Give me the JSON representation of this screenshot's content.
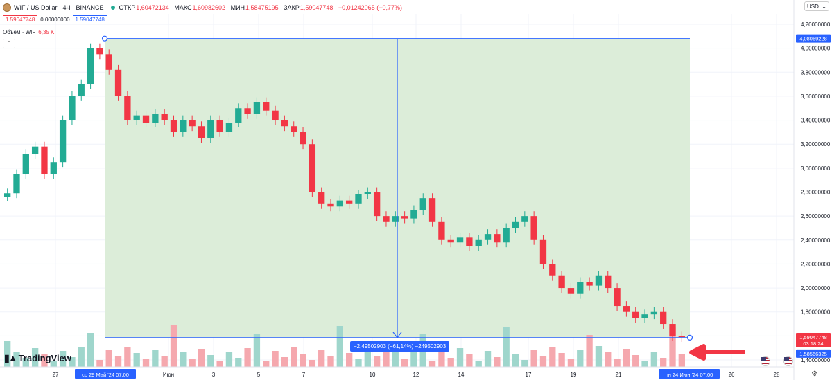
{
  "header": {
    "symbol": "WIF / US Dollar · 4Ч · BINANCE",
    "open_label": "ОТКР",
    "open": "1,60472134",
    "high_label": "МАКС",
    "high": "1,60982602",
    "low_label": "МИН",
    "low": "1,58475195",
    "close_label": "ЗАКР",
    "close": "1,59047748",
    "change": "−0,01242065 (−0,77%)",
    "bid": "1.59047748",
    "spread": "0.00000000",
    "ask": "1.59047748"
  },
  "volume_label": "Объём · WIF",
  "volume_value": "6,35 K",
  "currency": "USD",
  "brand": "TradingView",
  "measure_label": "−2,49502903 (−61,14%) −249502903",
  "axis_badges": {
    "top_price": "4,08069228",
    "last_price": "1,59047748",
    "countdown": "03:18:24",
    "bottom_price": "1,58566325",
    "start_date": "ср 29 Май '24",
    "start_time": "07:00",
    "end_date": "пн 24 Июн '24",
    "end_time": "07:00"
  },
  "colors": {
    "up": "#22ab94",
    "down": "#f23645",
    "range_fill": "#dcedd9",
    "measure": "#2962ff"
  },
  "chart_data": {
    "type": "candlestick",
    "title": "WIF / US Dollar · 4Ч · BINANCE",
    "y_ticks": [
      "4,20000000",
      "4,00000000",
      "3,80000000",
      "3,60000000",
      "3,40000000",
      "3,20000000",
      "3,00000000",
      "2,80000000",
      "2,60000000",
      "2,40000000",
      "2,20000000",
      "2,00000000",
      "1,80000000",
      "1,60000000",
      "1,40000000"
    ],
    "ylim": [
      1.36,
      4.23
    ],
    "x_ticks": [
      "27",
      "Июн",
      "3",
      "5",
      "7",
      "10",
      "12",
      "14",
      "17",
      "19",
      "21",
      "26",
      "28"
    ],
    "close_series": [
      2.79,
      2.95,
      3.12,
      3.18,
      2.95,
      3.05,
      3.4,
      3.6,
      3.7,
      4.0,
      3.95,
      3.82,
      3.6,
      3.4,
      3.44,
      3.38,
      3.45,
      3.4,
      3.3,
      3.4,
      3.35,
      3.25,
      3.4,
      3.3,
      3.38,
      3.5,
      3.45,
      3.55,
      3.48,
      3.4,
      3.35,
      3.3,
      3.2,
      2.8,
      2.7,
      2.68,
      2.73,
      2.7,
      2.78,
      2.8,
      2.6,
      2.55,
      2.6,
      2.58,
      2.65,
      2.75,
      2.55,
      2.4,
      2.38,
      2.42,
      2.35,
      2.4,
      2.45,
      2.38,
      2.5,
      2.55,
      2.6,
      2.4,
      2.2,
      2.1,
      2.0,
      1.95,
      2.05,
      2.02,
      2.1,
      2.0,
      1.85,
      1.8,
      1.75,
      1.78,
      1.8,
      1.7,
      1.6,
      1.59
    ],
    "measurement": {
      "from": 4.08069228,
      "to": 1.58566325,
      "change": -2.49502903,
      "change_pct": -61.14
    }
  }
}
